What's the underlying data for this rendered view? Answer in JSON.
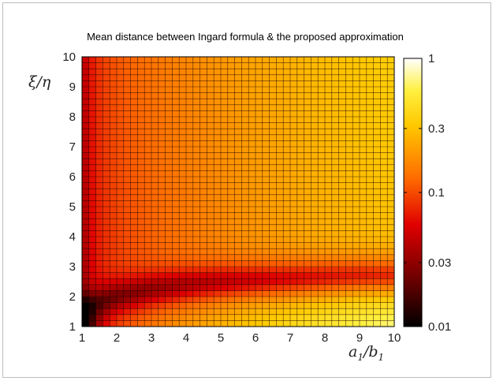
{
  "chart_data": {
    "type": "heatmap",
    "title": "Mean distance between Ingard formula & the proposed approximation",
    "xlabel": {
      "main": "a",
      "sub1": "1",
      "sep": "/b",
      "sub2": "1"
    },
    "ylabel": "ξ/η",
    "x_ticks": [
      "1",
      "2",
      "3",
      "4",
      "5",
      "6",
      "7",
      "8",
      "9",
      "10"
    ],
    "y_ticks": [
      "1",
      "2",
      "3",
      "4",
      "5",
      "6",
      "7",
      "8",
      "9",
      "10"
    ],
    "xlim": [
      1,
      10
    ],
    "ylim": [
      1,
      10
    ],
    "grid_cells": {
      "nx": 45,
      "ny": 45
    },
    "colorbar": {
      "scale": "log",
      "colormap": "hot",
      "range": [
        0.01,
        1
      ],
      "ticks": [
        {
          "value": 1,
          "label": "1"
        },
        {
          "value": 0.3,
          "label": "0.3"
        },
        {
          "value": 0.1,
          "label": "0.1"
        },
        {
          "value": 0.03,
          "label": "0.03"
        },
        {
          "value": 0.01,
          "label": "0.01"
        }
      ]
    },
    "value_profile": {
      "valley_y_at_x": [
        {
          "x": 1,
          "y": 1.6
        },
        {
          "x": 2,
          "y": 2.0
        },
        {
          "x": 3,
          "y": 2.25
        },
        {
          "x": 4,
          "y": 2.4
        },
        {
          "x": 5,
          "y": 2.5
        },
        {
          "x": 6,
          "y": 2.55
        },
        {
          "x": 7,
          "y": 2.6
        },
        {
          "x": 8,
          "y": 2.65
        },
        {
          "x": 9,
          "y": 2.7
        },
        {
          "x": 10,
          "y": 2.7
        }
      ],
      "approx_values": [
        {
          "x": 1.1,
          "y": 1.2,
          "value": 0.01
        },
        {
          "x": 1.1,
          "y": 9.5,
          "value": 0.03
        },
        {
          "x": 1.5,
          "y": 5,
          "value": 0.05
        },
        {
          "x": 2,
          "y": 9.5,
          "value": 0.1
        },
        {
          "x": 5,
          "y": 6,
          "value": 0.12
        },
        {
          "x": 8,
          "y": 9.5,
          "value": 0.25
        },
        {
          "x": 9.5,
          "y": 9.5,
          "value": 0.3
        },
        {
          "x": 5,
          "y": 2.5,
          "value": 0.05
        },
        {
          "x": 9.5,
          "y": 1.1,
          "value": 0.4
        }
      ]
    }
  }
}
